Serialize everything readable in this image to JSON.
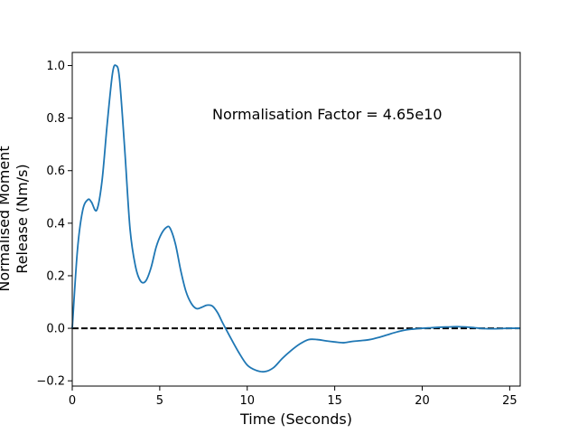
{
  "chart_data": {
    "type": "line",
    "title": "",
    "xlabel": "Time (Seconds)",
    "ylabel": [
      "Normalised Moment",
      "Release (Nm/s)"
    ],
    "xlim": [
      0,
      25.6
    ],
    "ylim": [
      -0.22,
      1.05
    ],
    "xticks": [
      0,
      5,
      10,
      15,
      20,
      25
    ],
    "yticks": [
      -0.2,
      0.0,
      0.2,
      0.4,
      0.6,
      0.8,
      1.0
    ],
    "xtick_labels": [
      "0",
      "5",
      "10",
      "15",
      "20",
      "25"
    ],
    "ytick_labels": [
      "−0.2",
      "0.0",
      "0.2",
      "0.4",
      "0.6",
      "0.8",
      "1.0"
    ],
    "grid": false,
    "annotation": "Normalisation Factor = 4.65e10",
    "reference_line": {
      "y": 0.0,
      "style": "dashed",
      "color": "#000000"
    },
    "series": [
      {
        "color": "#1f77b4",
        "x": [
          0,
          0.3,
          0.6,
          0.9,
          1.1,
          1.4,
          1.7,
          2.0,
          2.3,
          2.5,
          2.7,
          3.0,
          3.3,
          3.6,
          3.9,
          4.2,
          4.5,
          4.8,
          5.1,
          5.4,
          5.6,
          5.9,
          6.2,
          6.5,
          6.8,
          7.1,
          7.4,
          7.7,
          8.0,
          8.3,
          8.6,
          9.0,
          9.5,
          10.0,
          10.5,
          11.0,
          11.5,
          12.0,
          12.5,
          13.0,
          13.5,
          14.0,
          14.5,
          15.0,
          15.5,
          16.0,
          16.5,
          17.0,
          17.5,
          18.0,
          18.5,
          19.0,
          19.5,
          20.0,
          20.5,
          21.0,
          21.5,
          22.0,
          22.5,
          23.0,
          23.5,
          24.0,
          24.5,
          25.0,
          25.6
        ],
        "y": [
          0.0,
          0.3,
          0.45,
          0.49,
          0.48,
          0.45,
          0.56,
          0.78,
          0.97,
          1.0,
          0.95,
          0.68,
          0.38,
          0.24,
          0.18,
          0.18,
          0.23,
          0.31,
          0.36,
          0.385,
          0.38,
          0.32,
          0.22,
          0.14,
          0.095,
          0.075,
          0.08,
          0.088,
          0.085,
          0.06,
          0.02,
          -0.03,
          -0.09,
          -0.14,
          -0.16,
          -0.165,
          -0.15,
          -0.115,
          -0.085,
          -0.06,
          -0.043,
          -0.043,
          -0.048,
          -0.052,
          -0.055,
          -0.05,
          -0.047,
          -0.043,
          -0.035,
          -0.025,
          -0.015,
          -0.007,
          -0.003,
          0.0,
          0.002,
          0.004,
          0.005,
          0.006,
          0.005,
          0.002,
          -0.001,
          -0.002,
          -0.001,
          0.0,
          0.0
        ]
      }
    ]
  }
}
